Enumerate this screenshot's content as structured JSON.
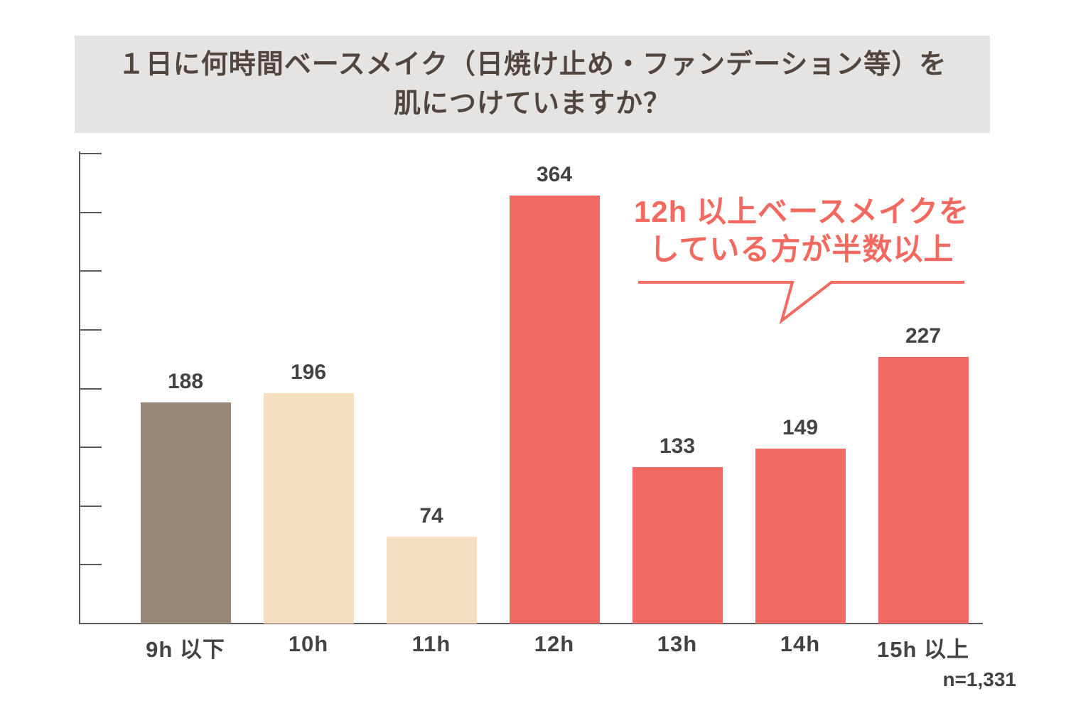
{
  "title": {
    "line1": "１日に何時間ベースメイク（日焼け止め・ファンデーション等）を",
    "line2": "肌につけていますか？"
  },
  "chart_data": {
    "type": "bar",
    "categories": [
      "9h 以下",
      "10h",
      "11h",
      "12h",
      "13h",
      "14h",
      "15h 以上"
    ],
    "values": [
      188,
      196,
      74,
      364,
      133,
      149,
      227
    ],
    "bar_colors": [
      "#9a8876",
      "#f5dfc0",
      "#f5dfc0",
      "#f06963",
      "#f06963",
      "#f06963",
      "#f06963"
    ],
    "title": "１日に何時間ベースメイク（日焼け止め・ファンデーション等）を肌につけていますか？",
    "xlabel": "",
    "ylabel": "",
    "ylim": [
      0,
      400
    ],
    "ytick_interval": 50,
    "ytick_labels_visible": false,
    "grid": false,
    "legend": false,
    "value_labels_shown": true
  },
  "annotation": {
    "line1": "12h 以上ベースメイクを",
    "line2": "している方が半数以上",
    "color": "#f2695f"
  },
  "footnote": "n=1,331",
  "colors": {
    "title_background": "#e5e4e2",
    "title_text": "#51463f",
    "bar_highlight": "#f06963",
    "bar_brown": "#9a8876",
    "bar_cream": "#f5dfc0",
    "axis": "#595959",
    "label_text": "#434343"
  }
}
